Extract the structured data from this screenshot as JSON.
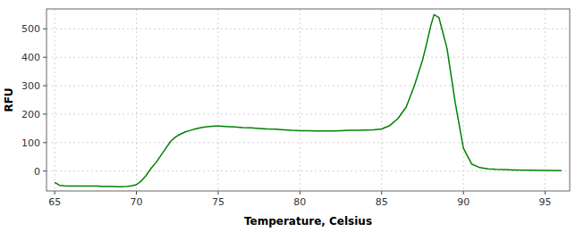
{
  "chart_data": {
    "type": "line",
    "xlabel": "Temperature, Celsius",
    "ylabel": "RFU",
    "color": "#008000",
    "grid": true,
    "xlim": [
      64.5,
      96.5
    ],
    "ylim": [
      -70,
      570
    ],
    "xticks": [
      65,
      70,
      75,
      80,
      85,
      90,
      95
    ],
    "yticks": [
      0,
      100,
      200,
      300,
      400,
      500
    ],
    "x": [
      65.0,
      65.3,
      65.6,
      65.9,
      66.2,
      66.5,
      66.8,
      67.0,
      67.3,
      67.6,
      67.9,
      68.2,
      68.5,
      68.8,
      69.1,
      69.4,
      69.7,
      70.0,
      70.3,
      70.6,
      70.9,
      71.2,
      71.5,
      71.8,
      72.1,
      72.4,
      72.7,
      73.0,
      73.3,
      73.6,
      73.9,
      74.2,
      74.5,
      74.8,
      75.1,
      75.4,
      75.7,
      76.0,
      76.5,
      77.0,
      77.5,
      78.0,
      78.5,
      79.0,
      79.5,
      80.0,
      80.5,
      81.0,
      81.5,
      82.0,
      82.5,
      83.0,
      83.5,
      84.0,
      84.5,
      85.0,
      85.5,
      86.0,
      86.5,
      87.0,
      87.5,
      87.8,
      88.0,
      88.2,
      88.5,
      89.0,
      89.5,
      90.0,
      90.5,
      91.0,
      91.5,
      92.0,
      92.5,
      93.0,
      94.0,
      95.0,
      96.0
    ],
    "values": [
      -40,
      -50,
      -52,
      -53,
      -53,
      -53,
      -53,
      -53,
      -53,
      -53,
      -54,
      -54,
      -54,
      -55,
      -55,
      -54,
      -52,
      -48,
      -35,
      -15,
      10,
      30,
      55,
      80,
      105,
      120,
      130,
      138,
      143,
      148,
      152,
      155,
      157,
      158,
      158,
      157,
      156,
      155,
      153,
      152,
      150,
      148,
      147,
      145,
      143,
      142,
      142,
      141,
      141,
      141,
      142,
      143,
      143,
      144,
      145,
      148,
      160,
      185,
      225,
      300,
      390,
      460,
      510,
      550,
      540,
      430,
      240,
      80,
      25,
      12,
      8,
      6,
      5,
      4,
      3,
      2,
      1
    ]
  }
}
